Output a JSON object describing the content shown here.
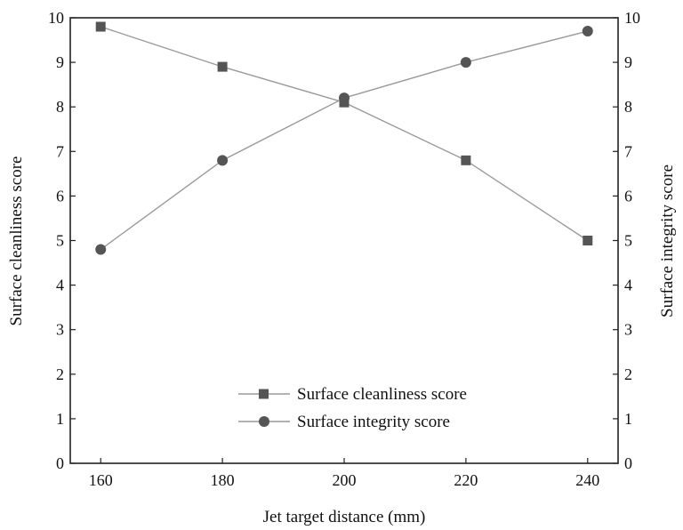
{
  "chart_data": {
    "type": "line",
    "title": "",
    "xlabel": "Jet target distance (mm)",
    "ylabel_left": "Surface cleanliness score",
    "ylabel_right": "Surface integrity score",
    "x": [
      160,
      180,
      200,
      220,
      240
    ],
    "xticks": [
      "160",
      "180",
      "200",
      "220",
      "240"
    ],
    "xlim": [
      155,
      245
    ],
    "ylim_left": [
      0,
      10
    ],
    "ylim_right": [
      0,
      10
    ],
    "yticks": [
      "0",
      "1",
      "2",
      "3",
      "4",
      "5",
      "6",
      "7",
      "8",
      "9",
      "10"
    ],
    "grid": false,
    "legend_position": "lower-center",
    "series": [
      {
        "name": "Surface cleanliness score",
        "axis": "left",
        "marker": "square",
        "color": "#555555",
        "values": [
          9.8,
          8.9,
          8.1,
          6.8,
          5.0
        ]
      },
      {
        "name": "Surface integrity score",
        "axis": "right",
        "marker": "circle",
        "color": "#555555",
        "values": [
          4.8,
          6.8,
          8.2,
          9.0,
          9.7
        ]
      }
    ]
  }
}
